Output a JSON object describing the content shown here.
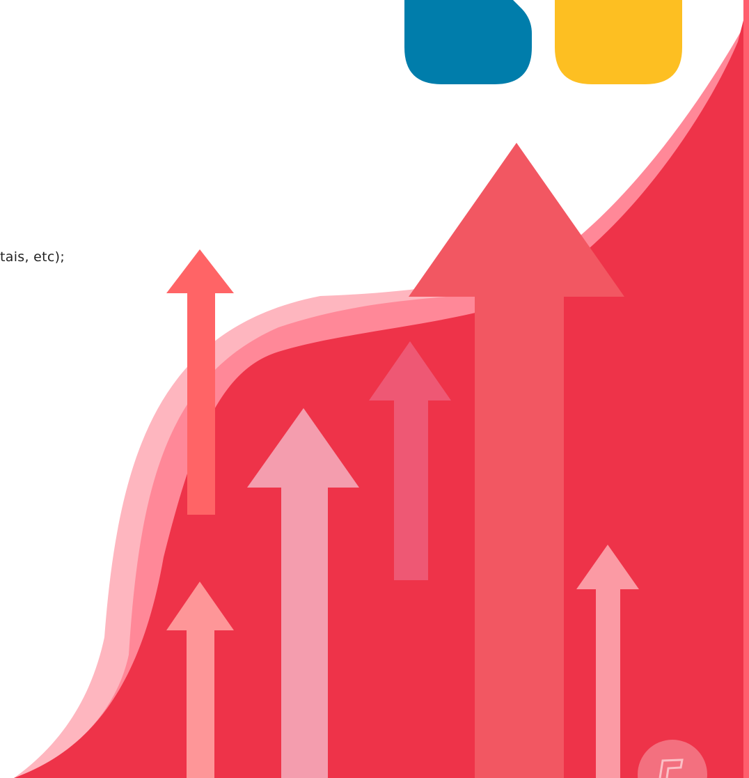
{
  "text": {
    "fragment": "tais, etc);"
  }
}
